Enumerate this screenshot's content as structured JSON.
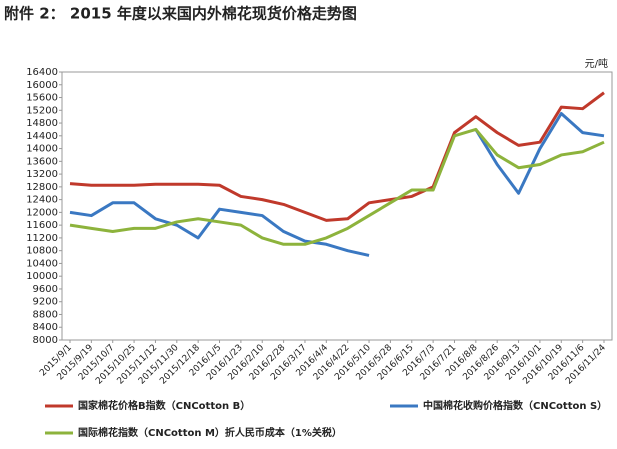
{
  "chart_data": {
    "type": "line",
    "title": "附件 2： 2015 年度以来国内外棉花现货价格走势图",
    "y_unit": "元/吨",
    "categories": [
      "2015/9/1",
      "2015/9/19",
      "2015/10/7",
      "2015/10/25",
      "2015/11/12",
      "2015/11/30",
      "2015/12/18",
      "2016/1/5",
      "2016/1/23",
      "2016/2/10",
      "2016/2/28",
      "2016/3/17",
      "2016/4/4",
      "2016/4/22",
      "2016/5/10",
      "2016/5/28",
      "2016/6/15",
      "2016/7/3",
      "2016/7/21",
      "2016/8/8",
      "2016/8/26",
      "2016/9/13",
      "2016/10/1",
      "2016/10/19",
      "2016/11/6",
      "2016/11/24"
    ],
    "series": [
      {
        "name": "国家棉花价格B指数（CNCotton B）",
        "color": "#c0392b",
        "values": [
          12900,
          12850,
          12850,
          12850,
          12880,
          12880,
          12880,
          12850,
          12500,
          12400,
          12250,
          12000,
          11750,
          11800,
          12300,
          12400,
          12500,
          12800,
          14500,
          15000,
          14500,
          14100,
          14200,
          15300,
          15250,
          15750
        ]
      },
      {
        "name": "中国棉花收购价格指数（CNCotton S）",
        "color": "#3a78c2",
        "values": [
          12000,
          11900,
          12300,
          12300,
          11800,
          11600,
          11200,
          12100,
          12000,
          11900,
          11400,
          11100,
          11000,
          10800,
          10650,
          null,
          null,
          null,
          null,
          14600,
          13500,
          12600,
          14000,
          15100,
          14500,
          14400
        ]
      },
      {
        "name": "国际棉花指数（CNCotton M）折人民币成本（1%关税）",
        "color": "#8db33c",
        "values": [
          11600,
          11500,
          11400,
          11500,
          11500,
          11700,
          11800,
          11700,
          11600,
          11200,
          11000,
          11000,
          11200,
          11500,
          11900,
          12300,
          12700,
          12700,
          14400,
          14600,
          13800,
          13400,
          13500,
          13800,
          13900,
          14200
        ]
      }
    ],
    "ylim": [
      8000,
      16400
    ],
    "yticks": [
      8000,
      8400,
      8800,
      9200,
      9600,
      10000,
      10400,
      10800,
      11200,
      11600,
      12000,
      12400,
      12800,
      13200,
      13600,
      14000,
      14400,
      14800,
      15200,
      15600,
      16000,
      16400
    ]
  }
}
